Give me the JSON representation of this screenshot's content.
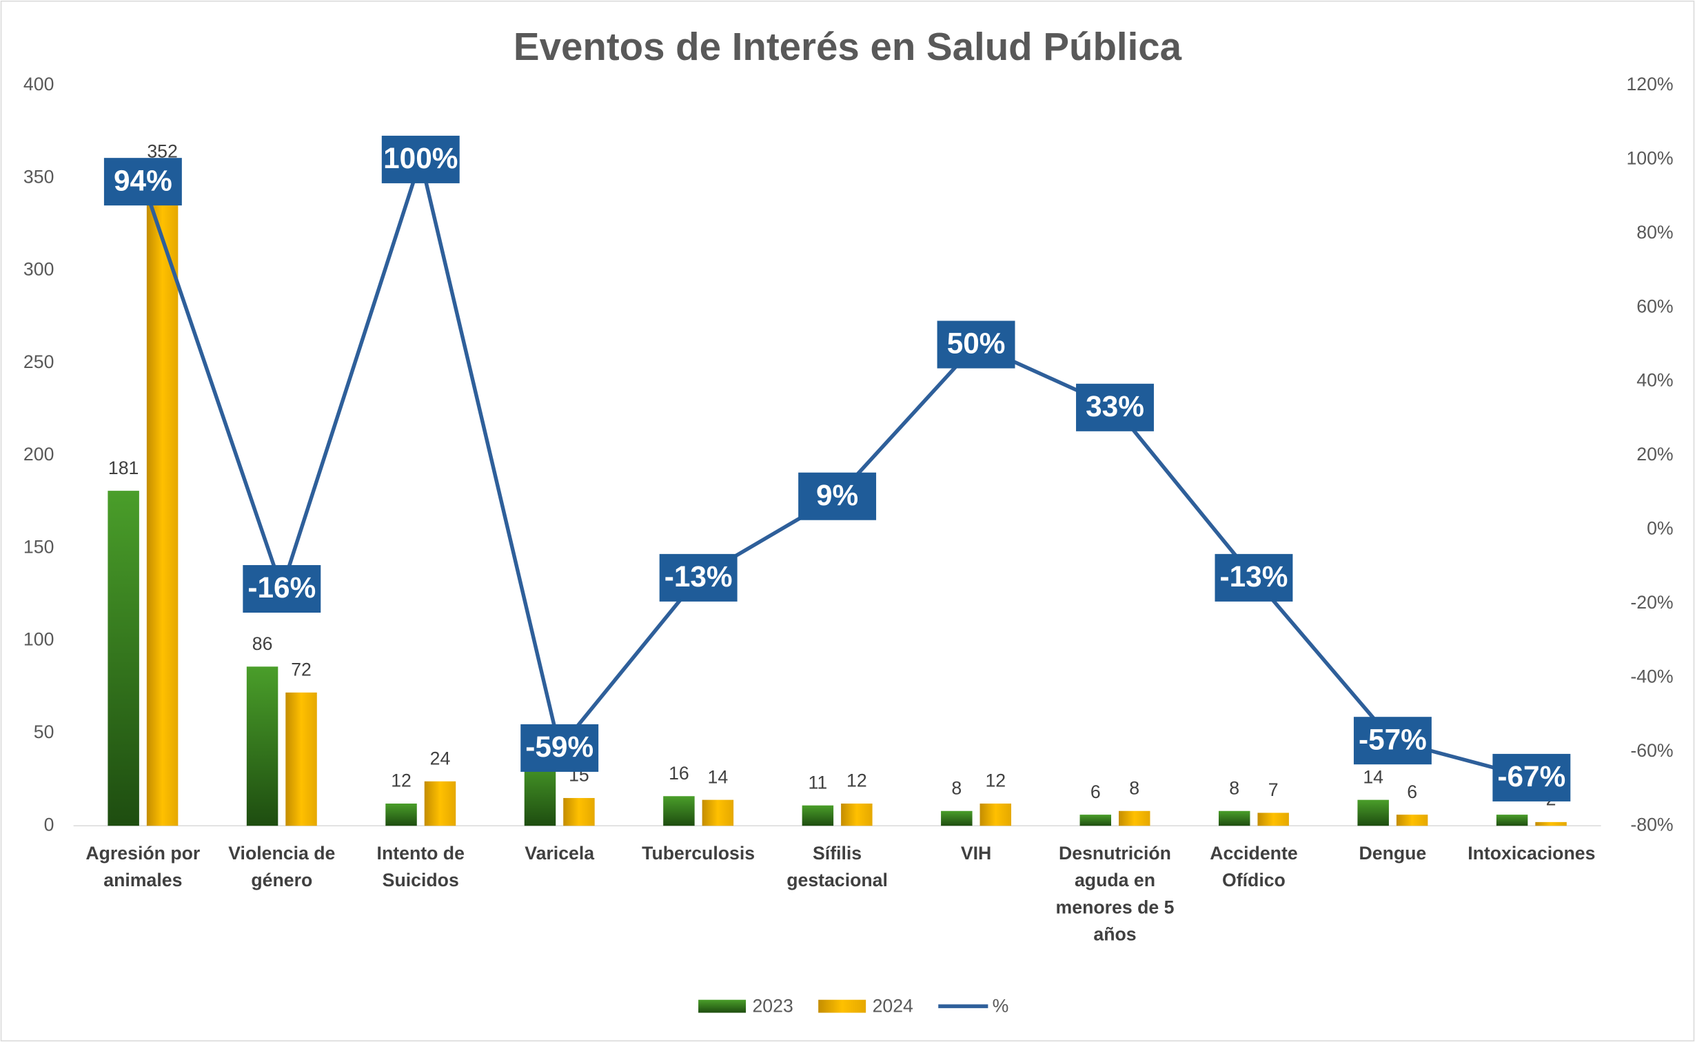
{
  "chart_data": {
    "type": "bar",
    "title": "Eventos de Interés en Salud Pública",
    "categories": [
      "Agresión por animales",
      "Violencia de género",
      "Intento de Suicidos",
      "Varicela",
      "Tuberculosis",
      "Sífilis gestacional",
      "VIH",
      "Desnutrición aguda en menores de 5 años",
      "Accidente Ofídico",
      "Dengue",
      "Intoxicaciones"
    ],
    "series": [
      {
        "name": "2023",
        "color": "#3a8a1f",
        "values": [
          181,
          86,
          12,
          37,
          16,
          11,
          8,
          6,
          8,
          14,
          6
        ]
      },
      {
        "name": "2024",
        "color": "#f0b400",
        "values": [
          352,
          72,
          24,
          15,
          14,
          12,
          12,
          8,
          7,
          6,
          2
        ]
      },
      {
        "name": "%",
        "type": "line",
        "axis": "y2",
        "color": "#2e5f9a",
        "values": [
          94,
          -16,
          100,
          -59,
          -13,
          9,
          50,
          33,
          -13,
          -57,
          -67
        ],
        "value_labels": [
          "94%",
          "-16%",
          "100%",
          "-59%",
          "-13%",
          "9%",
          "50%",
          "33%",
          "-13%",
          "-57%",
          "-67%"
        ]
      }
    ],
    "ylim": [
      0,
      400
    ],
    "yticks": [
      0,
      50,
      100,
      150,
      200,
      250,
      300,
      350,
      400
    ],
    "y2lim": [
      -80,
      120
    ],
    "y2ticks": [
      {
        "value": -80,
        "label": "-80%"
      },
      {
        "value": -60,
        "label": "-60%"
      },
      {
        "value": -40,
        "label": "-40%"
      },
      {
        "value": -20,
        "label": "-20%"
      },
      {
        "value": 0,
        "label": "0%"
      },
      {
        "value": 20,
        "label": "20%"
      },
      {
        "value": 40,
        "label": "40%"
      },
      {
        "value": 60,
        "label": "60%"
      },
      {
        "value": 80,
        "label": "80%"
      },
      {
        "value": 100,
        "label": "100%"
      },
      {
        "value": 120,
        "label": "120%"
      }
    ],
    "legend": "bottom"
  }
}
